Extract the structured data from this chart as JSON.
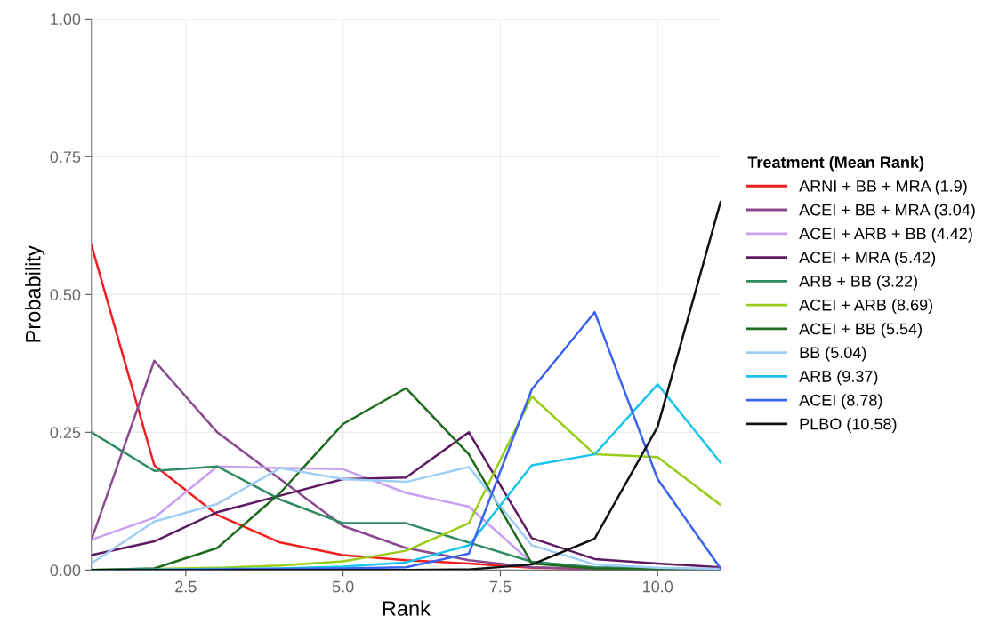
{
  "chart_data": {
    "type": "line",
    "xlabel": "Rank",
    "ylabel": "Probability",
    "legend_title": "Treatment (Mean Rank)",
    "x": [
      1,
      2,
      3,
      4,
      5,
      6,
      7,
      8,
      9,
      10,
      11
    ],
    "xlim": [
      1,
      11
    ],
    "xticks": [
      {
        "value": 2.5,
        "label": "2.5"
      },
      {
        "value": 5,
        "label": "5.0"
      },
      {
        "value": 7.5,
        "label": "7.5"
      },
      {
        "value": 10,
        "label": "10.0"
      }
    ],
    "ylim": [
      0,
      1
    ],
    "yticks": [
      {
        "value": 0,
        "label": "0.00"
      },
      {
        "value": 0.25,
        "label": "0.25"
      },
      {
        "value": 0.5,
        "label": "0.50"
      },
      {
        "value": 0.75,
        "label": "0.75"
      },
      {
        "value": 1,
        "label": "1.00"
      }
    ],
    "grid": true,
    "legend": "right",
    "line_style": "solid",
    "marker": "none",
    "series": [
      {
        "name": "ARNI + BB + MRA (1.9)",
        "color": "#f01e1e",
        "values": [
          0.59,
          0.19,
          0.1,
          0.05,
          0.027,
          0.018,
          0.012,
          0.004,
          0.002,
          null,
          null
        ]
      },
      {
        "name": "ACEI + BB + MRA (3.04)",
        "color": "#8a4a8f",
        "values": [
          0.055,
          0.38,
          0.25,
          0.165,
          0.08,
          0.04,
          0.018,
          0.005,
          0.002,
          0.001,
          0.0
        ]
      },
      {
        "name": "ACEI + ARB + BB (4.42)",
        "color": "#c9a0f2",
        "values": [
          0.055,
          0.095,
          0.188,
          0.185,
          0.183,
          0.14,
          0.115,
          0.013,
          0.005,
          0.002,
          0.001
        ]
      },
      {
        "name": "ACEI + MRA (5.42)",
        "color": "#5e1a63",
        "values": [
          0.027,
          0.052,
          0.105,
          0.135,
          0.165,
          0.168,
          0.25,
          0.058,
          0.02,
          0.012,
          0.005
        ]
      },
      {
        "name": "ARB + BB (3.22)",
        "color": "#2e8b62",
        "values": [
          0.25,
          0.18,
          0.188,
          0.128,
          0.085,
          0.085,
          0.05,
          0.015,
          0.005,
          0.003,
          0.001
        ]
      },
      {
        "name": "ACEI + ARB (8.69)",
        "color": "#9acd1a",
        "values": [
          0.0,
          0.002,
          0.004,
          0.008,
          0.016,
          0.035,
          0.085,
          0.315,
          0.21,
          0.205,
          0.118
        ]
      },
      {
        "name": "ACEI + BB (5.54)",
        "color": "#1e6b1e",
        "values": [
          0.0,
          0.003,
          0.04,
          0.14,
          0.265,
          0.33,
          0.21,
          0.012,
          0.003,
          0.001,
          0.0
        ]
      },
      {
        "name": "BB (5.04)",
        "color": "#9ecdf5",
        "values": [
          0.012,
          0.088,
          0.12,
          0.185,
          0.165,
          0.16,
          0.187,
          0.045,
          0.01,
          0.004,
          0.002
        ]
      },
      {
        "name": "ARB (9.37)",
        "color": "#19c5ee",
        "values": [
          0.0,
          0.001,
          0.002,
          0.003,
          0.006,
          0.014,
          0.045,
          0.19,
          0.21,
          0.337,
          0.195
        ]
      },
      {
        "name": "ACEI (8.78)",
        "color": "#3a64f0",
        "values": [
          0.0,
          0.0,
          0.001,
          0.002,
          0.003,
          0.005,
          0.03,
          0.328,
          0.468,
          0.165,
          0.003
        ]
      },
      {
        "name": "PLBO (10.58)",
        "color": "#111111",
        "values": [
          0.0,
          0.0,
          0.0,
          0.0,
          0.0,
          0.0,
          0.001,
          0.01,
          0.057,
          0.26,
          0.668
        ]
      }
    ]
  }
}
